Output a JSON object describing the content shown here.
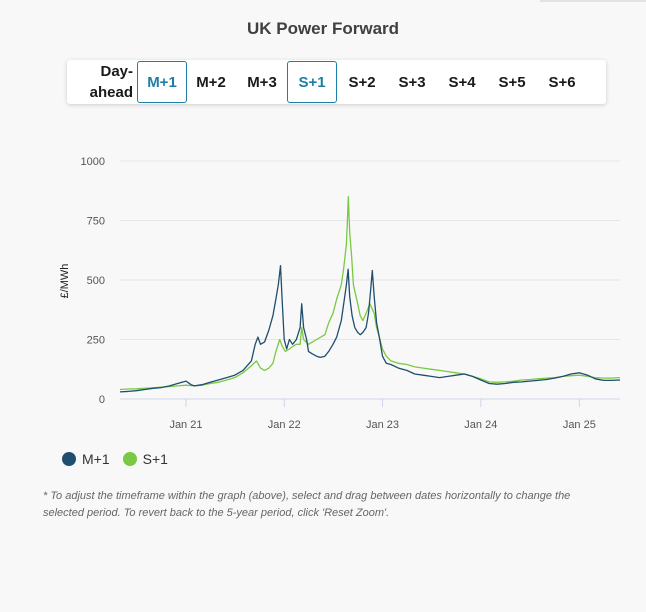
{
  "title": "UK Power Forward",
  "tabs": [
    {
      "id": "day-ahead",
      "label": "Day-ahead",
      "line1": "Day-",
      "line2": "ahead",
      "active": false
    },
    {
      "id": "m1",
      "label": "M+1",
      "active": true
    },
    {
      "id": "m2",
      "label": "M+2",
      "active": false
    },
    {
      "id": "m3",
      "label": "M+3",
      "active": false
    },
    {
      "id": "s1",
      "label": "S+1",
      "active": true
    },
    {
      "id": "s2",
      "label": "S+2",
      "active": false
    },
    {
      "id": "s3",
      "label": "S+3",
      "active": false
    },
    {
      "id": "s4",
      "label": "S+4",
      "active": false
    },
    {
      "id": "s5",
      "label": "S+5",
      "active": false
    },
    {
      "id": "s6",
      "label": "S+6",
      "active": false
    }
  ],
  "legend": [
    {
      "label": "M+1",
      "color": "#1f4e6e"
    },
    {
      "label": "S+1",
      "color": "#7ac943"
    }
  ],
  "note": "* To adjust the timeframe within the graph (above), select and drag between dates horizontally to change the selected period. To revert back to the 5-year period, click 'Reset Zoom'.",
  "chart_data": {
    "type": "line",
    "title": "",
    "xlabel": "",
    "ylabel": "£/MWh",
    "ylim": [
      0,
      1000
    ],
    "yticks": [
      0,
      250,
      500,
      750,
      1000
    ],
    "xlim": [
      "2020-05-01",
      "2025-06-01"
    ],
    "xticks": [
      {
        "date": "2021-01-01",
        "label": "Jan 21"
      },
      {
        "date": "2022-01-01",
        "label": "Jan 22"
      },
      {
        "date": "2023-01-01",
        "label": "Jan 23"
      },
      {
        "date": "2024-01-01",
        "label": "Jan 24"
      },
      {
        "date": "2025-01-01",
        "label": "Jan 25"
      }
    ],
    "grid": true,
    "legend_position": "bottom-left",
    "series": [
      {
        "name": "M+1",
        "color": "#1f4e6e",
        "points": [
          [
            "2020-05-01",
            30
          ],
          [
            "2020-06-01",
            32
          ],
          [
            "2020-07-01",
            35
          ],
          [
            "2020-08-01",
            40
          ],
          [
            "2020-09-01",
            45
          ],
          [
            "2020-10-01",
            48
          ],
          [
            "2020-11-01",
            55
          ],
          [
            "2020-12-01",
            65
          ],
          [
            "2021-01-01",
            75
          ],
          [
            "2021-01-20",
            60
          ],
          [
            "2021-02-01",
            55
          ],
          [
            "2021-03-01",
            60
          ],
          [
            "2021-04-01",
            70
          ],
          [
            "2021-05-01",
            80
          ],
          [
            "2021-06-01",
            90
          ],
          [
            "2021-07-01",
            100
          ],
          [
            "2021-08-01",
            120
          ],
          [
            "2021-09-01",
            160
          ],
          [
            "2021-09-15",
            230
          ],
          [
            "2021-09-25",
            260
          ],
          [
            "2021-10-05",
            230
          ],
          [
            "2021-10-20",
            240
          ],
          [
            "2021-11-05",
            290
          ],
          [
            "2021-11-20",
            350
          ],
          [
            "2021-12-01",
            420
          ],
          [
            "2021-12-10",
            480
          ],
          [
            "2021-12-18",
            560
          ],
          [
            "2021-12-24",
            420
          ],
          [
            "2022-01-01",
            250
          ],
          [
            "2022-01-10",
            210
          ],
          [
            "2022-01-20",
            250
          ],
          [
            "2022-02-01",
            230
          ],
          [
            "2022-02-15",
            250
          ],
          [
            "2022-03-01",
            300
          ],
          [
            "2022-03-07",
            400
          ],
          [
            "2022-03-14",
            300
          ],
          [
            "2022-03-25",
            250
          ],
          [
            "2022-04-01",
            200
          ],
          [
            "2022-04-15",
            190
          ],
          [
            "2022-05-01",
            180
          ],
          [
            "2022-05-15",
            175
          ],
          [
            "2022-06-01",
            180
          ],
          [
            "2022-06-15",
            200
          ],
          [
            "2022-07-01",
            230
          ],
          [
            "2022-07-15",
            260
          ],
          [
            "2022-08-01",
            330
          ],
          [
            "2022-08-10",
            400
          ],
          [
            "2022-08-20",
            480
          ],
          [
            "2022-08-26",
            545
          ],
          [
            "2022-09-01",
            430
          ],
          [
            "2022-09-10",
            350
          ],
          [
            "2022-09-20",
            300
          ],
          [
            "2022-10-01",
            280
          ],
          [
            "2022-10-10",
            270
          ],
          [
            "2022-10-20",
            280
          ],
          [
            "2022-11-01",
            300
          ],
          [
            "2022-11-10",
            360
          ],
          [
            "2022-11-18",
            460
          ],
          [
            "2022-11-24",
            540
          ],
          [
            "2022-12-01",
            430
          ],
          [
            "2022-12-10",
            320
          ],
          [
            "2022-12-20",
            260
          ],
          [
            "2023-01-01",
            180
          ],
          [
            "2023-01-15",
            150
          ],
          [
            "2023-02-01",
            145
          ],
          [
            "2023-03-01",
            130
          ],
          [
            "2023-04-01",
            120
          ],
          [
            "2023-05-01",
            105
          ],
          [
            "2023-06-01",
            100
          ],
          [
            "2023-07-01",
            95
          ],
          [
            "2023-08-01",
            90
          ],
          [
            "2023-09-01",
            95
          ],
          [
            "2023-10-01",
            100
          ],
          [
            "2023-11-01",
            105
          ],
          [
            "2023-12-01",
            95
          ],
          [
            "2024-01-01",
            80
          ],
          [
            "2024-02-01",
            65
          ],
          [
            "2024-03-01",
            62
          ],
          [
            "2024-04-01",
            65
          ],
          [
            "2024-05-01",
            70
          ],
          [
            "2024-06-01",
            72
          ],
          [
            "2024-07-01",
            75
          ],
          [
            "2024-08-01",
            78
          ],
          [
            "2024-09-01",
            82
          ],
          [
            "2024-10-01",
            88
          ],
          [
            "2024-11-01",
            95
          ],
          [
            "2024-12-01",
            105
          ],
          [
            "2025-01-01",
            110
          ],
          [
            "2025-02-01",
            100
          ],
          [
            "2025-03-01",
            85
          ],
          [
            "2025-04-01",
            78
          ],
          [
            "2025-05-01",
            78
          ],
          [
            "2025-06-01",
            80
          ]
        ]
      },
      {
        "name": "S+1",
        "color": "#7ac943",
        "points": [
          [
            "2020-05-01",
            40
          ],
          [
            "2020-06-01",
            42
          ],
          [
            "2020-07-01",
            43
          ],
          [
            "2020-08-01",
            45
          ],
          [
            "2020-09-01",
            47
          ],
          [
            "2020-10-01",
            50
          ],
          [
            "2020-11-01",
            52
          ],
          [
            "2020-12-01",
            55
          ],
          [
            "2021-01-01",
            58
          ],
          [
            "2021-02-01",
            55
          ],
          [
            "2021-03-01",
            58
          ],
          [
            "2021-04-01",
            65
          ],
          [
            "2021-05-01",
            70
          ],
          [
            "2021-06-01",
            80
          ],
          [
            "2021-07-01",
            90
          ],
          [
            "2021-08-01",
            110
          ],
          [
            "2021-09-01",
            140
          ],
          [
            "2021-09-20",
            160
          ],
          [
            "2021-10-05",
            130
          ],
          [
            "2021-10-20",
            120
          ],
          [
            "2021-11-05",
            130
          ],
          [
            "2021-11-20",
            150
          ],
          [
            "2021-12-01",
            200
          ],
          [
            "2021-12-15",
            250
          ],
          [
            "2021-12-25",
            220
          ],
          [
            "2022-01-05",
            200
          ],
          [
            "2022-01-20",
            210
          ],
          [
            "2022-02-01",
            220
          ],
          [
            "2022-02-15",
            230
          ],
          [
            "2022-03-01",
            230
          ],
          [
            "2022-03-07",
            300
          ],
          [
            "2022-03-14",
            250
          ],
          [
            "2022-04-01",
            230
          ],
          [
            "2022-05-01",
            250
          ],
          [
            "2022-06-01",
            270
          ],
          [
            "2022-06-15",
            320
          ],
          [
            "2022-07-01",
            360
          ],
          [
            "2022-07-15",
            420
          ],
          [
            "2022-08-01",
            480
          ],
          [
            "2022-08-10",
            550
          ],
          [
            "2022-08-20",
            650
          ],
          [
            "2022-08-24",
            760
          ],
          [
            "2022-08-27",
            850
          ],
          [
            "2022-09-01",
            700
          ],
          [
            "2022-09-08",
            600
          ],
          [
            "2022-09-15",
            480
          ],
          [
            "2022-10-01",
            400
          ],
          [
            "2022-10-10",
            350
          ],
          [
            "2022-10-20",
            330
          ],
          [
            "2022-11-01",
            360
          ],
          [
            "2022-11-15",
            400
          ],
          [
            "2022-12-01",
            360
          ],
          [
            "2022-12-10",
            300
          ],
          [
            "2022-12-20",
            260
          ],
          [
            "2023-01-01",
            210
          ],
          [
            "2023-01-15",
            180
          ],
          [
            "2023-02-01",
            160
          ],
          [
            "2023-03-01",
            150
          ],
          [
            "2023-04-01",
            145
          ],
          [
            "2023-05-01",
            135
          ],
          [
            "2023-06-01",
            130
          ],
          [
            "2023-07-01",
            125
          ],
          [
            "2023-08-01",
            120
          ],
          [
            "2023-09-01",
            115
          ],
          [
            "2023-10-01",
            110
          ],
          [
            "2023-11-01",
            105
          ],
          [
            "2023-12-01",
            95
          ],
          [
            "2024-01-01",
            85
          ],
          [
            "2024-02-01",
            72
          ],
          [
            "2024-03-01",
            70
          ],
          [
            "2024-04-01",
            72
          ],
          [
            "2024-05-01",
            75
          ],
          [
            "2024-06-01",
            80
          ],
          [
            "2024-07-01",
            82
          ],
          [
            "2024-08-01",
            85
          ],
          [
            "2024-09-01",
            88
          ],
          [
            "2024-10-01",
            90
          ],
          [
            "2024-11-01",
            95
          ],
          [
            "2024-12-01",
            98
          ],
          [
            "2025-01-01",
            100
          ],
          [
            "2025-02-01",
            95
          ],
          [
            "2025-03-01",
            90
          ],
          [
            "2025-04-01",
            88
          ],
          [
            "2025-05-01",
            88
          ],
          [
            "2025-06-01",
            90
          ]
        ]
      }
    ]
  }
}
